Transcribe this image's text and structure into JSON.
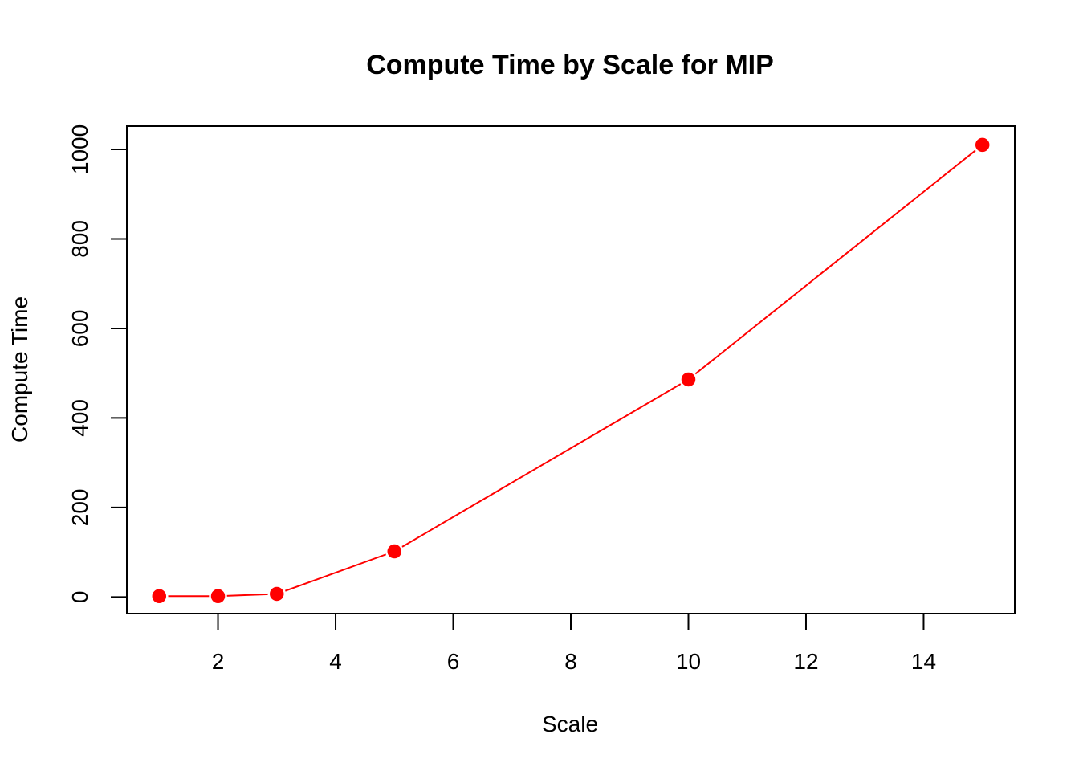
{
  "chart_data": {
    "type": "line",
    "title": "Compute Time by Scale for MIP",
    "xlabel": "Scale",
    "ylabel": "Compute Time",
    "x": [
      1,
      2,
      3,
      5,
      10,
      15
    ],
    "series": [
      {
        "values": [
          2,
          2,
          7,
          102,
          486,
          1010
        ],
        "color": "#ff0000"
      }
    ],
    "xlim": [
      0.45,
      15.55
    ],
    "ylim": [
      -37,
      1052
    ],
    "xticks": [
      2,
      4,
      6,
      8,
      10,
      12,
      14
    ],
    "yticks": [
      0,
      200,
      400,
      600,
      800,
      1000
    ],
    "grid": false,
    "legend": "none",
    "marker": "filled-circle"
  }
}
